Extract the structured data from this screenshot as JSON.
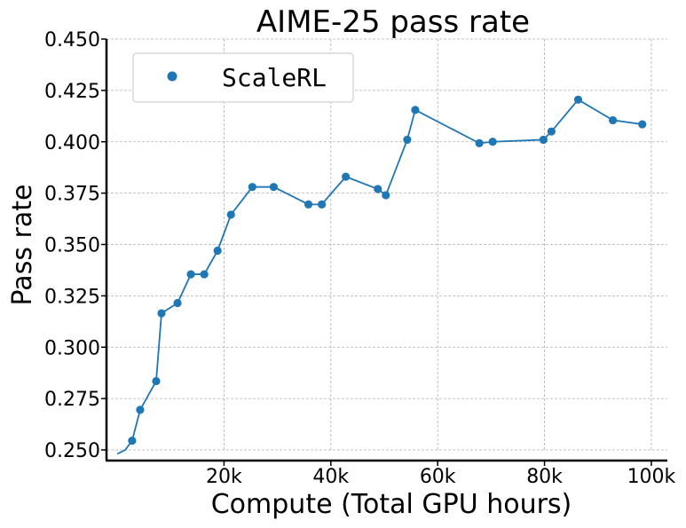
{
  "chart_data": {
    "type": "line",
    "title": "AIME-25 pass rate",
    "xlabel": "Compute (Total GPU hours)",
    "ylabel": "Pass rate",
    "xlim": [
      -2000,
      103000
    ],
    "ylim": [
      0.25,
      0.45
    ],
    "xticks": [
      20000,
      40000,
      60000,
      80000,
      100000
    ],
    "xtick_labels": [
      "20k",
      "40k",
      "60k",
      "80k",
      "100k"
    ],
    "yticks": [
      0.25,
      0.275,
      0.3,
      0.325,
      0.35,
      0.375,
      0.4,
      0.425,
      0.45
    ],
    "ytick_labels": [
      "0.250",
      "0.275",
      "0.300",
      "0.325",
      "0.350",
      "0.375",
      "0.400",
      "0.425",
      "0.450"
    ],
    "grid": true,
    "legend_position": "top-left",
    "series": [
      {
        "name": "ScaleRL",
        "color": "#1f77b4",
        "x": [
          0,
          1500,
          2800,
          4300,
          7300,
          8300,
          11300,
          13800,
          16300,
          18800,
          21300,
          25300,
          29300,
          35800,
          38300,
          42800,
          48800,
          50300,
          54300,
          55800,
          67800,
          70300,
          79800,
          81300,
          86300,
          92800,
          98300
        ],
        "y": [
          0.248,
          0.25,
          0.2545,
          0.2695,
          0.2835,
          0.3165,
          0.3215,
          0.3355,
          0.3355,
          0.347,
          0.3645,
          0.378,
          0.378,
          0.3695,
          0.3695,
          0.383,
          0.377,
          0.374,
          0.401,
          0.4155,
          0.3993,
          0.4,
          0.401,
          0.405,
          0.4205,
          0.4105,
          0.4085
        ],
        "markers": [
          false,
          false,
          true,
          true,
          true,
          true,
          true,
          true,
          true,
          true,
          true,
          true,
          true,
          true,
          true,
          true,
          true,
          true,
          true,
          true,
          true,
          true,
          true,
          true,
          true,
          true,
          true
        ]
      }
    ]
  }
}
